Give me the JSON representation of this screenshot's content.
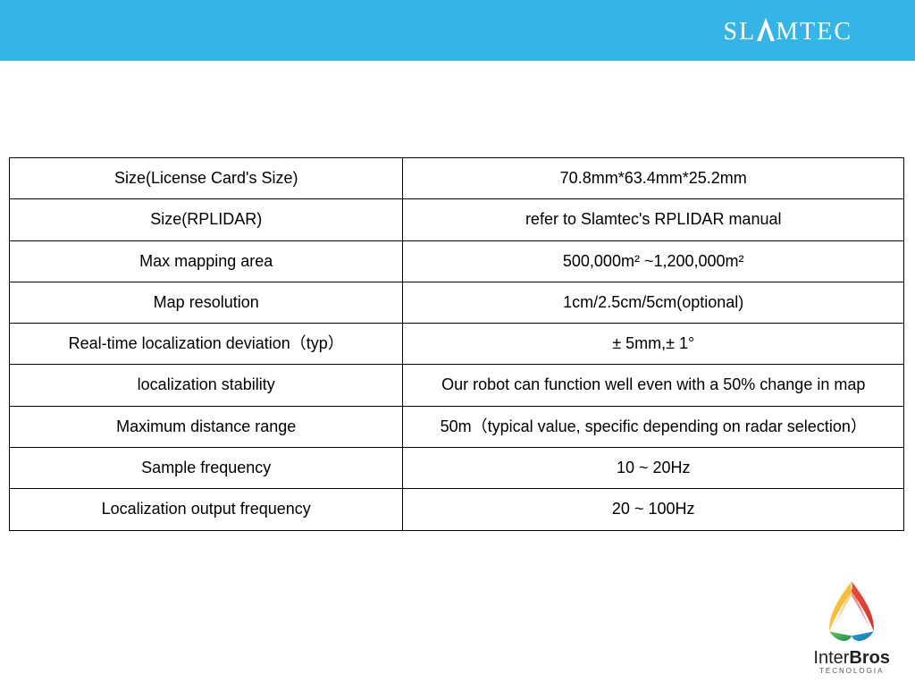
{
  "header": {
    "brand": "SLAMTEC",
    "bar_color": "#36b4e5",
    "text_color": "#ffffff"
  },
  "spec_table": {
    "border_color": "#000000",
    "font_size": 18,
    "rows": [
      {
        "label": "Size(License Card's Size)",
        "value": "70.8mm*63.4mm*25.2mm"
      },
      {
        "label": "Size(RPLIDAR)",
        "value": "refer to Slamtec's RPLIDAR manual"
      },
      {
        "label": "Max mapping area",
        "value": "500,000m² ~1,200,000m²"
      },
      {
        "label": "Map resolution",
        "value": "1cm/2.5cm/5cm(optional)"
      },
      {
        "label": "Real-time localization deviation（typ）",
        "value": "± 5mm,± 1°"
      },
      {
        "label": "localization stability",
        "value": "Our robot can function well even with a 50% change in map"
      },
      {
        "label": "Maximum distance range",
        "value": "50m（typical value, specific depending on radar selection）"
      },
      {
        "label": "Sample frequency",
        "value": "10 ~ 20Hz"
      },
      {
        "label": "Localization output frequency",
        "value": "20 ~ 100Hz"
      }
    ]
  },
  "footer": {
    "brand_prefix": "Inter",
    "brand_suffix": "Bros",
    "subtitle": "TECNOLOGIA",
    "logo_colors": [
      "#f9d54a",
      "#ef4d3c",
      "#2aa9d2",
      "#27a85f"
    ]
  }
}
